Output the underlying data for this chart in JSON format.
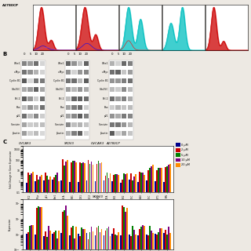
{
  "panel_A_label": "A2780CP",
  "panel_B_label": "B",
  "panel_C_label": "C",
  "western_labels": [
    "Wee1",
    "c-Myc",
    "Cyclin B1",
    "Cdc25C",
    "Bcl-2",
    "Bax",
    "p21",
    "Survivin",
    "β-actin"
  ],
  "western_conc": [
    "0",
    "5",
    "10",
    "20"
  ],
  "cell_lines": [
    "OVCAR3",
    "SKOV3",
    "A2780CP"
  ],
  "legend_labels": [
    "0 μM",
    "2 μM",
    "5 μM",
    "10 μM",
    "20 μM"
  ],
  "legend_colors": [
    "#00008B",
    "#CC0000",
    "#008000",
    "#800080",
    "#FF8C00"
  ],
  "bar_genes": [
    "BIRC2",
    "c-Myc",
    "p21",
    "Wee1",
    "CDKN1A",
    "CCNB1",
    "CDK1",
    "CDC2",
    "WEE1",
    "GADD45A",
    "CHEK1",
    "CHEK2",
    "CDC25C",
    "CC-NA4",
    "CDC25C",
    "MYT1",
    "SFN"
  ],
  "bg_color": "#ede9e3",
  "flow_colors_fill": [
    "#CC0000",
    "#CC0000",
    "#00BFBF",
    "#00BFBF",
    "#CC0000"
  ],
  "flow_has_lines": [
    true,
    true,
    false,
    false,
    false
  ]
}
